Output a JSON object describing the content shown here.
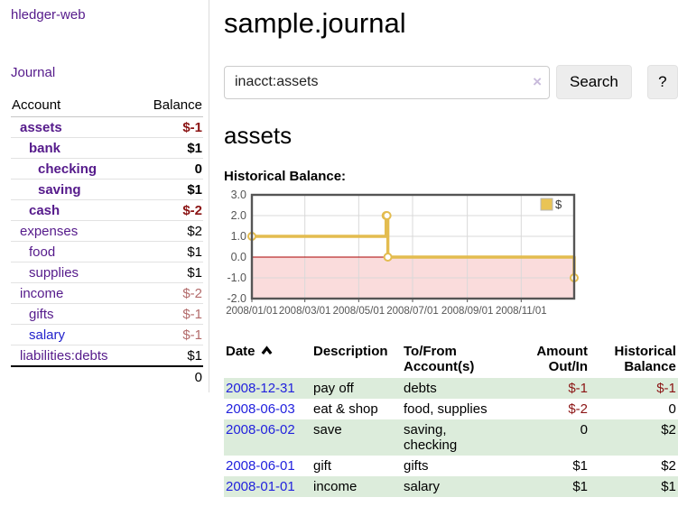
{
  "sidebar": {
    "brand": "hledger-web",
    "journal_link": "Journal",
    "accounts_table": {
      "headers": [
        "Account",
        "Balance"
      ],
      "rows": [
        {
          "name": "assets",
          "indent": 0,
          "bold": true,
          "balance": "$-1",
          "balance_style": "neg-strong"
        },
        {
          "name": "bank",
          "indent": 1,
          "bold": true,
          "balance": "$1",
          "balance_style": "pos"
        },
        {
          "name": "checking",
          "indent": 2,
          "bold": true,
          "balance": "0",
          "balance_style": "pos"
        },
        {
          "name": "saving",
          "indent": 2,
          "bold": true,
          "balance": "$1",
          "balance_style": "pos"
        },
        {
          "name": "cash",
          "indent": 1,
          "bold": true,
          "balance": "$-2",
          "balance_style": "neg-strong"
        },
        {
          "name": "expenses",
          "indent": 0,
          "bold": false,
          "balance": "$2",
          "balance_style": "pos"
        },
        {
          "name": "food",
          "indent": 1,
          "bold": false,
          "balance": "$1",
          "balance_style": "pos"
        },
        {
          "name": "supplies",
          "indent": 1,
          "bold": false,
          "balance": "$1",
          "balance_style": "pos"
        },
        {
          "name": "income",
          "indent": 0,
          "bold": false,
          "balance": "$-2",
          "balance_style": "neg-faded"
        },
        {
          "name": "gifts",
          "indent": 1,
          "bold": false,
          "balance": "$-1",
          "balance_style": "neg-faded"
        },
        {
          "name": "salary",
          "indent": 1,
          "bold": false,
          "link_color": "blue",
          "balance": "$-1",
          "balance_style": "neg-faded"
        },
        {
          "name": "liabilities:debts",
          "indent": 0,
          "bold": false,
          "balance": "$1",
          "balance_style": "pos"
        }
      ],
      "total": "0"
    }
  },
  "main": {
    "title": "sample.journal",
    "search": {
      "value": "inacct:assets",
      "clear_icon": "×",
      "button_label": "Search",
      "help_label": "?"
    },
    "account_heading": "assets",
    "chart_label": "Historical Balance:"
  },
  "chart_data": {
    "type": "line",
    "step": true,
    "title": "Historical Balance:",
    "series": [
      {
        "name": "$",
        "x": [
          "2008-01-01",
          "2008-06-01",
          "2008-06-02",
          "2008-06-03",
          "2008-12-31"
        ],
        "y": [
          1,
          2,
          2,
          0,
          -1
        ]
      }
    ],
    "x_range": [
      "2008-01-01",
      "2008-12-31"
    ],
    "ylim": [
      -2,
      3
    ],
    "ytick_values": [
      3,
      2,
      1,
      0,
      -1,
      -2
    ],
    "ytick_labels": [
      "3.0",
      "2.0",
      "1.0",
      "0.0",
      "-1.0",
      "-2.0"
    ],
    "xtick_dates": [
      "2008-01-01",
      "2008-03-01",
      "2008-05-01",
      "2008-07-01",
      "2008-09-01",
      "2008-11-01"
    ],
    "xtick_labels": [
      "2008/01/01",
      "2008/03/01",
      "2008/05/01",
      "2008/07/01",
      "2008/09/01",
      "2008/11/01"
    ],
    "grid": true,
    "legend": {
      "label": "$",
      "position": "top-right"
    },
    "colors": {
      "line": "#e3bc4f",
      "marker_fill": "#ffffff",
      "legend_swatch": "#e9c455",
      "negative_area": "#fadcdc",
      "zero_line": "#aa0000",
      "gridline": "#d9d9d9",
      "border": "#555555",
      "tick_text": "#555555"
    }
  },
  "register_table": {
    "headers": [
      {
        "line1": "Date",
        "line2": "",
        "align": "left",
        "sortable": true
      },
      {
        "line1": "Description",
        "line2": "",
        "align": "left"
      },
      {
        "line1": "To/From",
        "line2": "Account(s)",
        "align": "left"
      },
      {
        "line1": "Amount",
        "line2": "Out/In",
        "align": "right"
      },
      {
        "line1": "Historical",
        "line2": "Balance",
        "align": "right"
      }
    ],
    "sort_icon": "chevron-up",
    "rows": [
      {
        "date": "2008-12-31",
        "description": "pay off",
        "accounts": "debts",
        "amount": "$-1",
        "amount_neg": true,
        "balance": "$-1",
        "balance_neg": true,
        "shaded": true
      },
      {
        "date": "2008-06-03",
        "description": "eat & shop",
        "accounts": "food, supplies",
        "amount": "$-2",
        "amount_neg": true,
        "balance": "0",
        "balance_neg": false,
        "shaded": false
      },
      {
        "date": "2008-06-02",
        "description": "save",
        "accounts": "saving, checking",
        "amount": "0",
        "amount_neg": false,
        "balance": "$2",
        "balance_neg": false,
        "shaded": true
      },
      {
        "date": "2008-06-01",
        "description": "gift",
        "accounts": "gifts",
        "amount": "$1",
        "amount_neg": false,
        "balance": "$2",
        "balance_neg": false,
        "shaded": false
      },
      {
        "date": "2008-01-01",
        "description": "income",
        "accounts": "salary",
        "amount": "$1",
        "amount_neg": false,
        "balance": "$1",
        "balance_neg": false,
        "shaded": true
      }
    ]
  }
}
